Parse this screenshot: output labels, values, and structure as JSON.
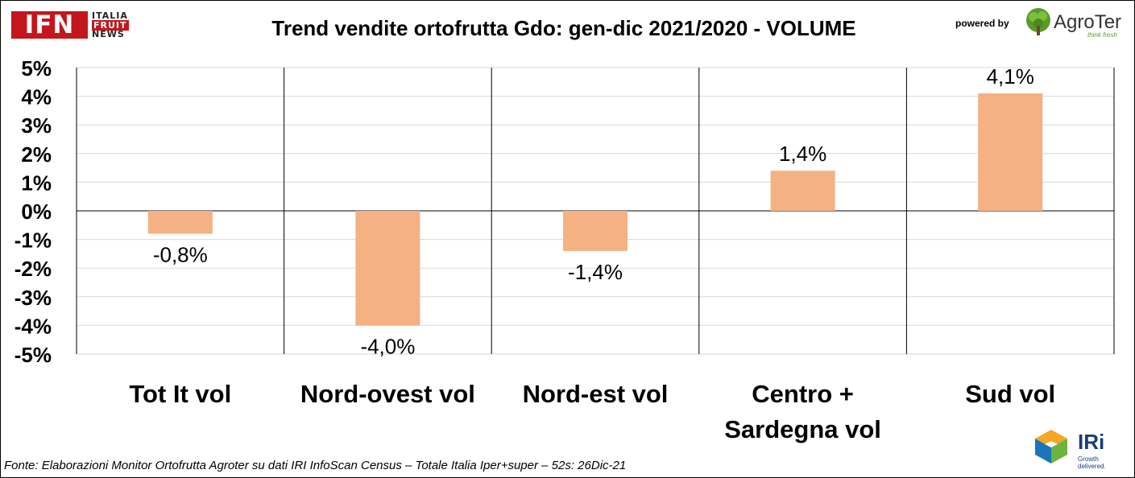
{
  "logos": {
    "ifn": {
      "mark": "IFN",
      "line1": "ITALIA",
      "line2": "FRUIT",
      "line3": "NEWS"
    },
    "powered_by": "powered by",
    "agroter": {
      "name": "AgroTer",
      "tagline": "think fresh"
    },
    "iri": {
      "name": "IRi",
      "tagline": "Growth delivered."
    }
  },
  "source_note": "Fonte: Elaborazioni Monitor Ortofrutta Agroter su dati IRI InfoScan Census – Totale Italia Iper+super – 52s: 26Dic-21",
  "chart_data": {
    "type": "bar",
    "title": "Trend vendite ortofrutta Gdo: gen-dic 2021/2020 - VOLUME",
    "categories": [
      [
        "Tot It  vol"
      ],
      [
        "Nord-ovest vol"
      ],
      [
        "Nord-est vol"
      ],
      [
        "Centro +",
        "Sardegna vol"
      ],
      [
        "Sud vol"
      ]
    ],
    "values": [
      -0.8,
      -4.0,
      -1.4,
      1.4,
      4.1
    ],
    "data_labels": [
      "-0,8%",
      "-4,0%",
      "-1,4%",
      "1,4%",
      "4,1%"
    ],
    "ylim": [
      -5,
      5
    ],
    "yticks": [
      5,
      4,
      3,
      2,
      1,
      0,
      -1,
      -2,
      -3,
      -4,
      -5
    ],
    "ytick_labels": [
      "5%",
      "4%",
      "3%",
      "2%",
      "1%",
      "0%",
      "-1%",
      "-2%",
      "-3%",
      "-4%",
      "-5%"
    ],
    "grid": true,
    "bar_color": "#f4b183"
  }
}
